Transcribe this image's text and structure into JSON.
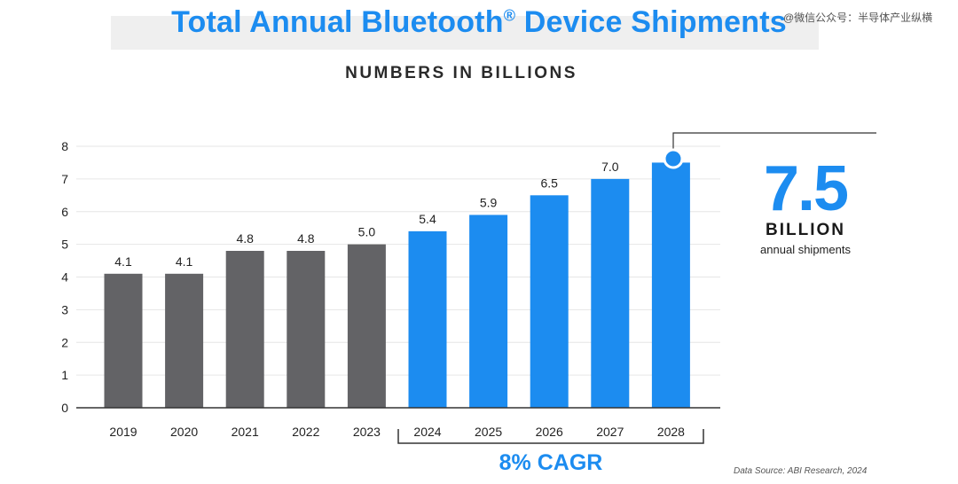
{
  "header": {
    "title": "Total Annual Bluetooth",
    "title_mark": "®",
    "title_rest": " Device Shipments",
    "subtitle": "NUMBERS IN BILLIONS",
    "watermark": "@微信公众号：半导体产业纵横"
  },
  "callout": {
    "value": "7.5",
    "unit": "BILLION",
    "description": "annual shipments"
  },
  "cagr_label": "8% CAGR",
  "source": "Data Source: ABI Research, 2024",
  "colors": {
    "historical": "#636366",
    "forecast": "#1c8cf0",
    "title": "#1c8cf0"
  },
  "chart_data": {
    "type": "bar",
    "categories": [
      "2019",
      "2020",
      "2021",
      "2022",
      "2023",
      "2024",
      "2025",
      "2026",
      "2027",
      "2028"
    ],
    "values": [
      4.1,
      4.1,
      4.8,
      4.8,
      5.0,
      5.4,
      5.9,
      6.5,
      7.0,
      7.5
    ],
    "value_labels": [
      "4.1",
      "4.1",
      "4.8",
      "4.8",
      "5.0",
      "5.4",
      "5.9",
      "6.5",
      "7.0",
      ""
    ],
    "ylim": [
      0,
      8
    ],
    "yticks": [
      "0",
      "1",
      "2",
      "3",
      "4",
      "5",
      "6",
      "7",
      "8"
    ],
    "grid": true,
    "historical_count": 5,
    "xlabel": "",
    "ylabel": ""
  }
}
